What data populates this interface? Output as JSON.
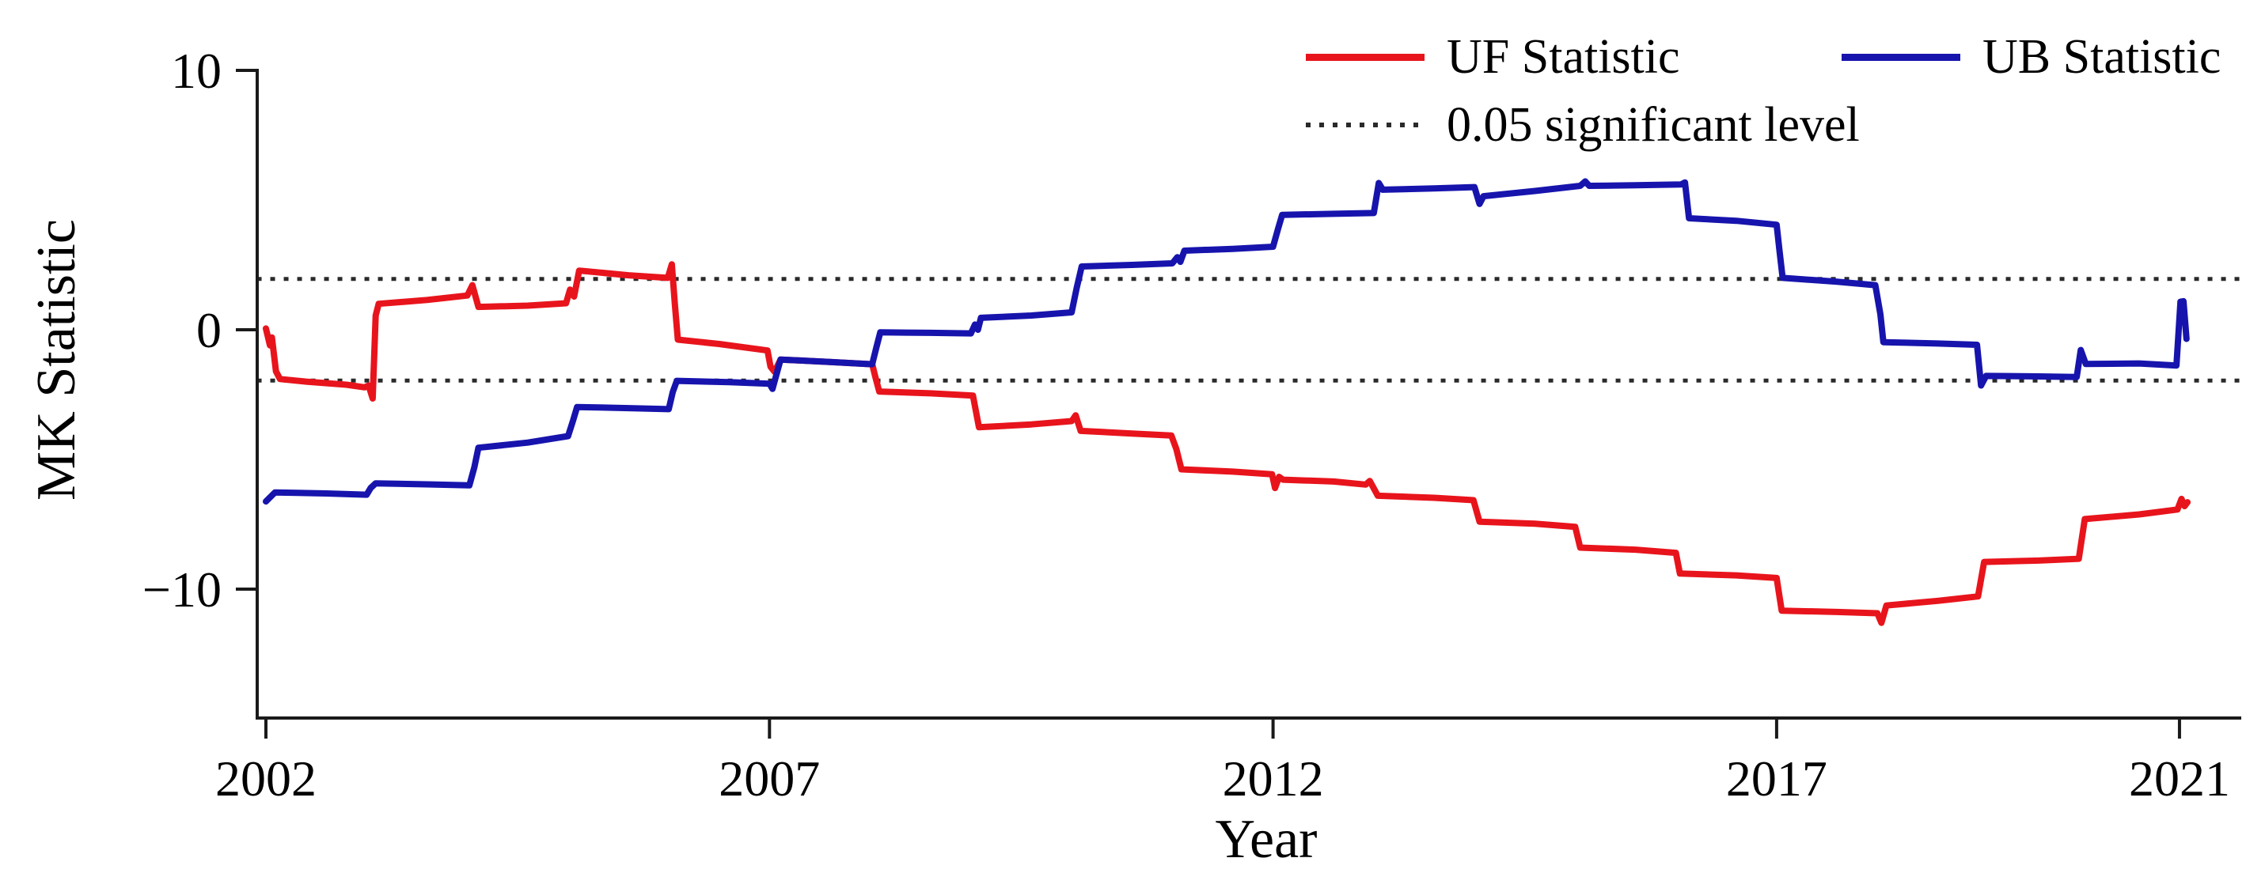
{
  "figure": {
    "ylabel": "MK Statistic",
    "xlabel": "Year",
    "background": "#ffffff",
    "axis_color": "#1a1a1a"
  },
  "legend": [
    {
      "label": "UF Statistic",
      "type": "solid-line",
      "color": "#e8141c"
    },
    {
      "label": "UB Statistic",
      "type": "solid-line",
      "color": "#1714ad"
    },
    {
      "label": "0.05 significant level",
      "type": "dotted-line",
      "color": "#2a2a2a"
    }
  ],
  "chart_data": {
    "type": "line",
    "title": "",
    "xlabel": "Year",
    "ylabel": "MK Statistic",
    "xlim": [
      2001.91,
      2021.61
    ],
    "ylim": [
      -15,
      10.1
    ],
    "grid": false,
    "legend_position": "top-right",
    "yticks": [
      {
        "value": 10,
        "label": "10"
      },
      {
        "value": 0,
        "label": "0"
      },
      {
        "value": -10,
        "label": "−10"
      }
    ],
    "xticks": [
      {
        "value": 2002,
        "label": "2002"
      },
      {
        "value": 2007,
        "label": "2007"
      },
      {
        "value": 2012,
        "label": "2012"
      },
      {
        "value": 2017,
        "label": "2017"
      },
      {
        "value": 2021,
        "label": "2021"
      }
    ],
    "reference_lines": [
      {
        "name": "0.05 significant level (upper)",
        "y": 1.96,
        "style": "dotted",
        "color": "#2a2a2a"
      },
      {
        "name": "0.05 significant level (lower)",
        "y": -1.96,
        "style": "dotted",
        "color": "#2a2a2a"
      }
    ],
    "series": [
      {
        "name": "UF Statistic",
        "color": "#e8141c",
        "points": [
          [
            2002.0,
            0.05
          ],
          [
            2002.04,
            -0.6
          ],
          [
            2002.06,
            -0.3
          ],
          [
            2002.1,
            -1.6
          ],
          [
            2002.14,
            -1.9
          ],
          [
            2002.4,
            -2.0
          ],
          [
            2002.8,
            -2.12
          ],
          [
            2002.98,
            -2.22
          ],
          [
            2003.02,
            -2.15
          ],
          [
            2003.06,
            -2.65
          ],
          [
            2003.09,
            0.55
          ],
          [
            2003.12,
            1.0
          ],
          [
            2003.6,
            1.15
          ],
          [
            2004.0,
            1.32
          ],
          [
            2004.05,
            1.72
          ],
          [
            2004.11,
            0.88
          ],
          [
            2004.6,
            0.93
          ],
          [
            2004.98,
            1.02
          ],
          [
            2005.02,
            1.55
          ],
          [
            2005.06,
            1.28
          ],
          [
            2005.11,
            2.28
          ],
          [
            2005.6,
            2.1
          ],
          [
            2005.99,
            2.0
          ],
          [
            2006.03,
            2.52
          ],
          [
            2006.06,
            1.0
          ],
          [
            2006.09,
            -0.38
          ],
          [
            2006.5,
            -0.55
          ],
          [
            2006.98,
            -0.8
          ],
          [
            2007.01,
            -1.42
          ],
          [
            2007.05,
            -1.62
          ],
          [
            2007.11,
            -1.15
          ],
          [
            2007.6,
            -1.24
          ],
          [
            2008.02,
            -1.33
          ],
          [
            2008.05,
            -1.8
          ],
          [
            2008.09,
            -2.38
          ],
          [
            2008.6,
            -2.45
          ],
          [
            2009.02,
            -2.54
          ],
          [
            2009.08,
            -3.76
          ],
          [
            2009.6,
            -3.65
          ],
          [
            2010.0,
            -3.52
          ],
          [
            2010.04,
            -3.3
          ],
          [
            2010.09,
            -3.9
          ],
          [
            2010.6,
            -4.0
          ],
          [
            2010.99,
            -4.08
          ],
          [
            2011.04,
            -4.6
          ],
          [
            2011.09,
            -5.38
          ],
          [
            2011.6,
            -5.47
          ],
          [
            2011.99,
            -5.57
          ],
          [
            2012.02,
            -6.1
          ],
          [
            2012.06,
            -5.67
          ],
          [
            2012.1,
            -5.78
          ],
          [
            2012.6,
            -5.85
          ],
          [
            2012.92,
            -5.97
          ],
          [
            2012.96,
            -5.83
          ],
          [
            2013.04,
            -6.4
          ],
          [
            2013.6,
            -6.48
          ],
          [
            2013.99,
            -6.57
          ],
          [
            2014.05,
            -7.4
          ],
          [
            2014.6,
            -7.48
          ],
          [
            2015.0,
            -7.6
          ],
          [
            2015.05,
            -8.4
          ],
          [
            2015.6,
            -8.48
          ],
          [
            2016.0,
            -8.6
          ],
          [
            2016.04,
            -9.4
          ],
          [
            2016.6,
            -9.47
          ],
          [
            2017.0,
            -9.57
          ],
          [
            2017.05,
            -10.83
          ],
          [
            2017.6,
            -10.88
          ],
          [
            2018.0,
            -10.93
          ],
          [
            2018.04,
            -11.3
          ],
          [
            2018.09,
            -10.63
          ],
          [
            2018.6,
            -10.45
          ],
          [
            2019.0,
            -10.28
          ],
          [
            2019.06,
            -8.95
          ],
          [
            2019.6,
            -8.9
          ],
          [
            2020.0,
            -8.83
          ],
          [
            2020.06,
            -7.3
          ],
          [
            2020.6,
            -7.12
          ],
          [
            2020.98,
            -6.93
          ],
          [
            2021.02,
            -6.52
          ],
          [
            2021.05,
            -6.8
          ],
          [
            2021.08,
            -6.65
          ]
        ]
      },
      {
        "name": "UB Statistic",
        "color": "#1714ad",
        "points": [
          [
            2002.0,
            -6.62
          ],
          [
            2002.09,
            -6.27
          ],
          [
            2002.6,
            -6.31
          ],
          [
            2003.0,
            -6.36
          ],
          [
            2003.04,
            -6.1
          ],
          [
            2003.09,
            -5.92
          ],
          [
            2003.6,
            -5.96
          ],
          [
            2004.02,
            -6.0
          ],
          [
            2004.07,
            -5.3
          ],
          [
            2004.11,
            -4.55
          ],
          [
            2004.6,
            -4.35
          ],
          [
            2005.0,
            -4.1
          ],
          [
            2005.05,
            -3.5
          ],
          [
            2005.09,
            -2.98
          ],
          [
            2005.6,
            -3.02
          ],
          [
            2006.0,
            -3.06
          ],
          [
            2006.04,
            -2.4
          ],
          [
            2006.08,
            -1.97
          ],
          [
            2006.6,
            -2.02
          ],
          [
            2007.0,
            -2.08
          ],
          [
            2007.03,
            -2.28
          ],
          [
            2007.11,
            -1.15
          ],
          [
            2007.6,
            -1.24
          ],
          [
            2008.02,
            -1.33
          ],
          [
            2008.06,
            -0.7
          ],
          [
            2008.1,
            -0.1
          ],
          [
            2008.6,
            -0.12
          ],
          [
            2009.0,
            -0.14
          ],
          [
            2009.04,
            0.2
          ],
          [
            2009.07,
            0.0
          ],
          [
            2009.1,
            0.46
          ],
          [
            2009.6,
            0.55
          ],
          [
            2010.0,
            0.67
          ],
          [
            2010.05,
            1.6
          ],
          [
            2010.1,
            2.44
          ],
          [
            2010.6,
            2.5
          ],
          [
            2011.0,
            2.56
          ],
          [
            2011.05,
            2.8
          ],
          [
            2011.08,
            2.62
          ],
          [
            2011.12,
            3.05
          ],
          [
            2011.6,
            3.12
          ],
          [
            2012.0,
            3.2
          ],
          [
            2012.05,
            3.9
          ],
          [
            2012.09,
            4.43
          ],
          [
            2012.6,
            4.47
          ],
          [
            2013.0,
            4.5
          ],
          [
            2013.05,
            5.66
          ],
          [
            2013.09,
            5.4
          ],
          [
            2013.6,
            5.45
          ],
          [
            2014.0,
            5.5
          ],
          [
            2014.05,
            4.85
          ],
          [
            2014.09,
            5.15
          ],
          [
            2014.6,
            5.35
          ],
          [
            2015.05,
            5.55
          ],
          [
            2015.1,
            5.72
          ],
          [
            2015.14,
            5.55
          ],
          [
            2015.6,
            5.57
          ],
          [
            2016.05,
            5.6
          ],
          [
            2016.09,
            5.68
          ],
          [
            2016.13,
            4.3
          ],
          [
            2016.6,
            4.2
          ],
          [
            2017.0,
            4.05
          ],
          [
            2017.03,
            3.0
          ],
          [
            2017.06,
            2.0
          ],
          [
            2017.6,
            1.85
          ],
          [
            2017.98,
            1.72
          ],
          [
            2018.03,
            0.6
          ],
          [
            2018.06,
            -0.48
          ],
          [
            2018.6,
            -0.53
          ],
          [
            2018.99,
            -0.58
          ],
          [
            2019.03,
            -2.15
          ],
          [
            2019.08,
            -1.78
          ],
          [
            2019.6,
            -1.8
          ],
          [
            2019.98,
            -1.82
          ],
          [
            2020.02,
            -0.78
          ],
          [
            2020.07,
            -1.32
          ],
          [
            2020.6,
            -1.3
          ],
          [
            2020.97,
            -1.38
          ],
          [
            2021.01,
            1.08
          ],
          [
            2021.04,
            1.1
          ],
          [
            2021.07,
            -0.35
          ]
        ]
      }
    ]
  }
}
